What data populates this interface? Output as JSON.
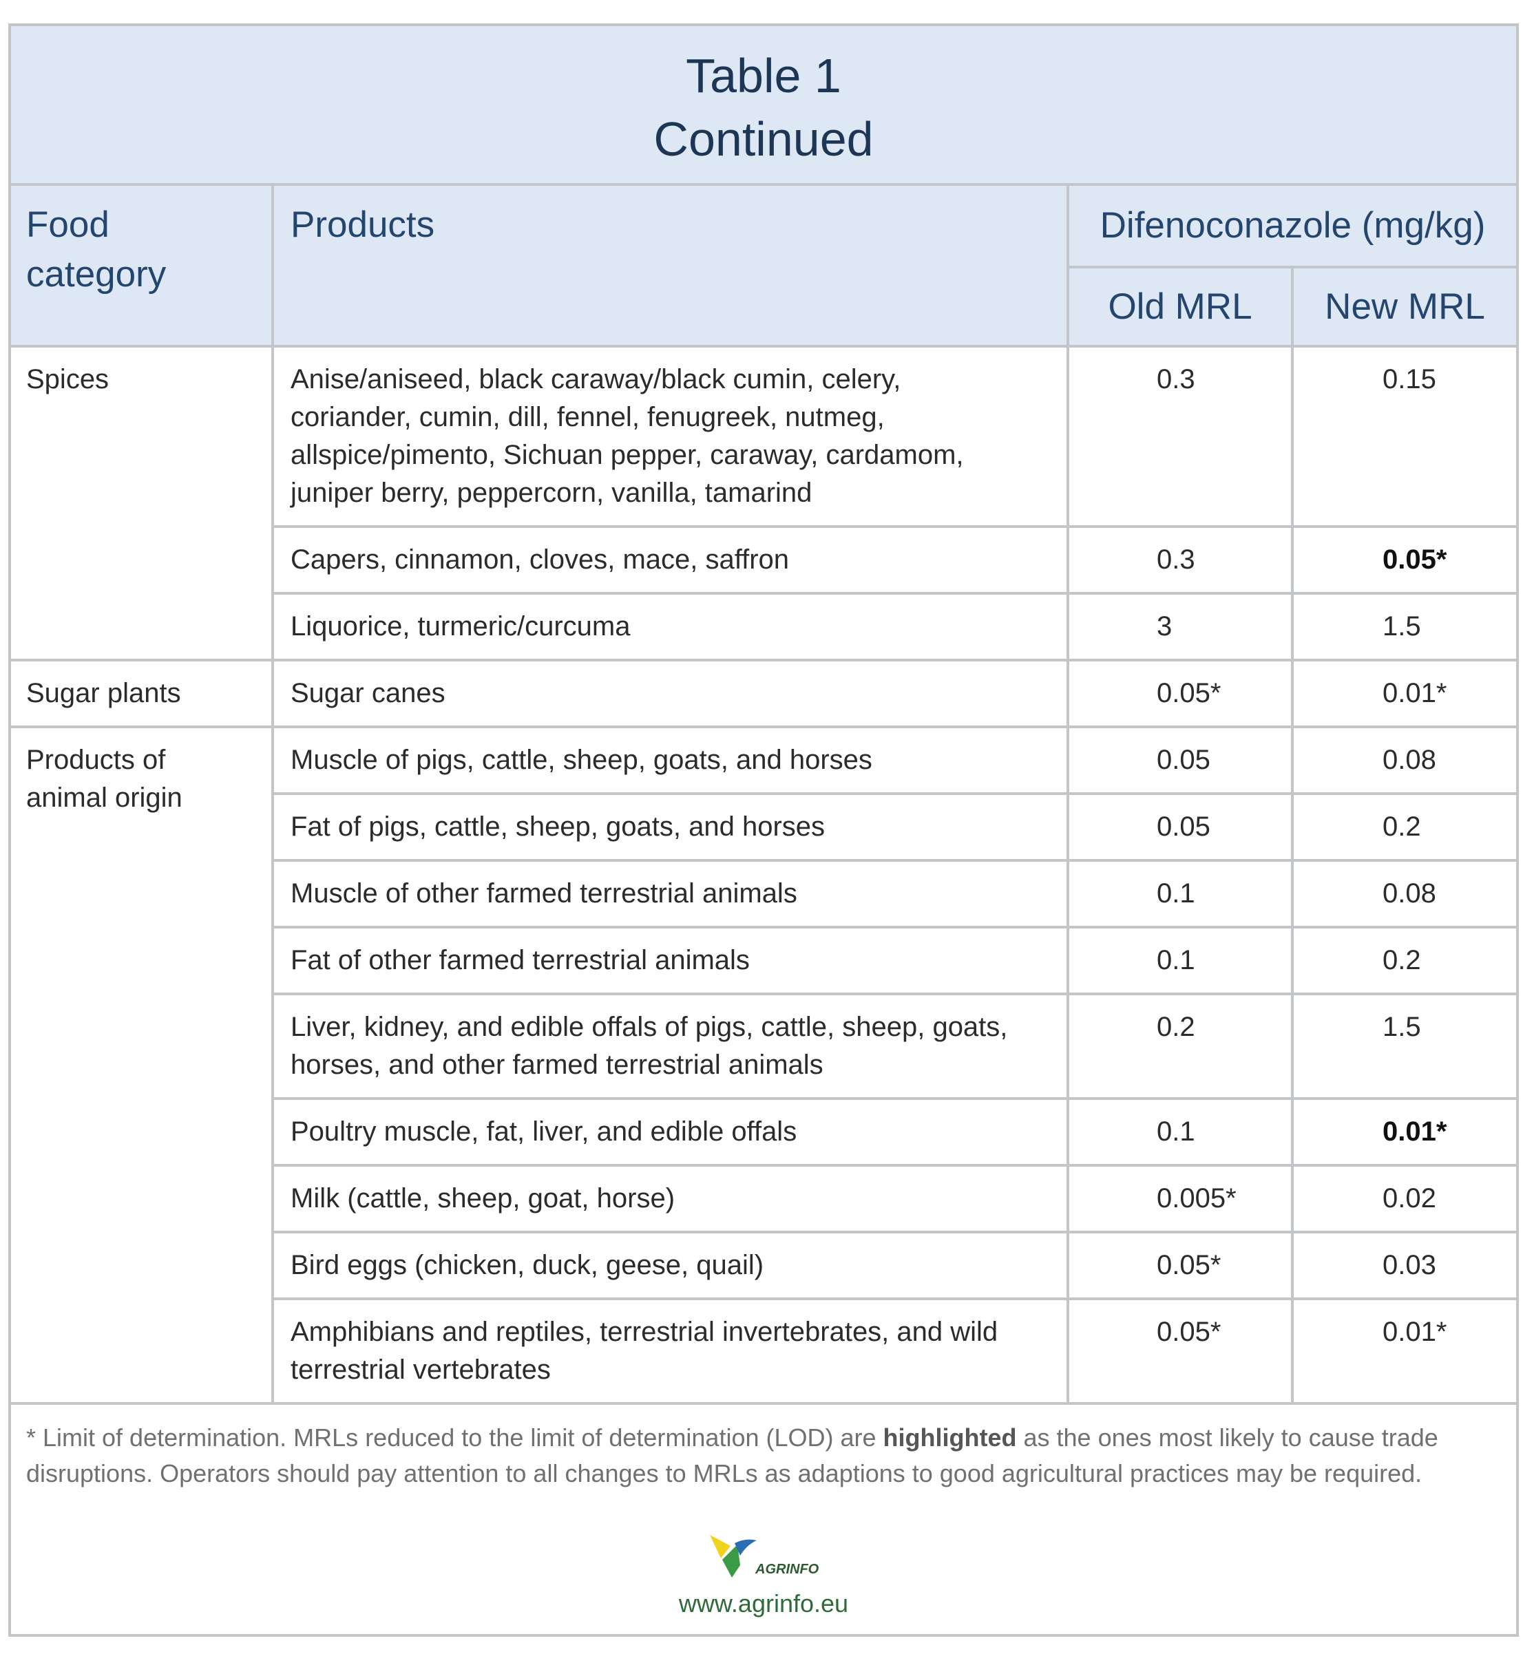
{
  "title": {
    "line1": "Table 1",
    "line2": "Continued"
  },
  "header": {
    "food_category": "Food\ncategory",
    "products": "Products",
    "substance": "Difenoconazole (mg/kg)",
    "old_mrl": "Old MRL",
    "new_mrl": "New MRL"
  },
  "groups": [
    {
      "category": "Spices",
      "rows": [
        {
          "products": "Anise/aniseed, black caraway/black cumin, celery,\ncoriander, cumin, dill, fennel, fenugreek, nutmeg,\nallspice/pimento, Sichuan pepper, caraway, cardamom,\njuniper berry, peppercorn, vanilla, tamarind",
          "old_mrl": "0.3",
          "new_mrl": "0.15",
          "highlighted": false
        },
        {
          "products": "Capers, cinnamon, cloves, mace, saffron",
          "old_mrl": "0.3",
          "new_mrl": "0.05*",
          "highlighted": true
        },
        {
          "products": "Liquorice, turmeric/curcuma",
          "old_mrl": "3",
          "new_mrl": "1.5",
          "highlighted": false
        }
      ]
    },
    {
      "category": "Sugar plants",
      "rows": [
        {
          "products": "Sugar canes",
          "old_mrl": "0.05*",
          "new_mrl": "0.01*",
          "highlighted": false
        }
      ]
    },
    {
      "category": "Products of\nanimal origin",
      "rows": [
        {
          "products": "Muscle of pigs, cattle, sheep, goats, and horses",
          "old_mrl": "0.05",
          "new_mrl": "0.08",
          "highlighted": false
        },
        {
          "products": "Fat of pigs, cattle, sheep, goats, and horses",
          "old_mrl": "0.05",
          "new_mrl": "0.2",
          "highlighted": false
        },
        {
          "products": "Muscle of other farmed terrestrial animals",
          "old_mrl": "0.1",
          "new_mrl": "0.08",
          "highlighted": false
        },
        {
          "products": "Fat of other farmed terrestrial animals",
          "old_mrl": "0.1",
          "new_mrl": "0.2",
          "highlighted": false
        },
        {
          "products": "Liver, kidney, and edible offals of pigs, cattle, sheep, goats,\nhorses, and other farmed terrestrial animals",
          "old_mrl": "0.2",
          "new_mrl": "1.5",
          "highlighted": false
        },
        {
          "products": "Poultry muscle, fat, liver, and edible offals",
          "old_mrl": "0.1",
          "new_mrl": "0.01*",
          "highlighted": true
        },
        {
          "products": "Milk (cattle, sheep, goat, horse)",
          "old_mrl": "0.005*",
          "new_mrl": "0.02",
          "highlighted": false
        },
        {
          "products": "Bird eggs (chicken, duck, geese, quail)",
          "old_mrl": "0.05*",
          "new_mrl": "0.03",
          "highlighted": false
        },
        {
          "products": "Amphibians and reptiles, terrestrial invertebrates, and wild\nterrestrial vertebrates",
          "old_mrl": "0.05*",
          "new_mrl": "0.01*",
          "highlighted": false
        }
      ]
    }
  ],
  "footnote": {
    "before": "* Limit of determination. MRLs reduced to the limit of determination (LOD) are ",
    "highlighted": "highlighted",
    "after": " as the ones most likely to cause trade disruptions. Operators should pay attention to all changes to MRLs as adaptions to good agricultural practices may be required."
  },
  "logo": {
    "text": "AGRINFO"
  },
  "website": "www.agrinfo.eu",
  "colors": {
    "header_bg": "#dde8f4",
    "header_text": "#24456d",
    "title_text": "#1e3656",
    "border": "#c3c6c9",
    "body_text": "#2b2b2b",
    "footnote_text": "#707070",
    "website_text": "#2f6b3a",
    "logo_yellow": "#f2d31c",
    "logo_green": "#3b9a46",
    "logo_blue": "#2a6db3",
    "logo_text": "#2d5a2f"
  }
}
